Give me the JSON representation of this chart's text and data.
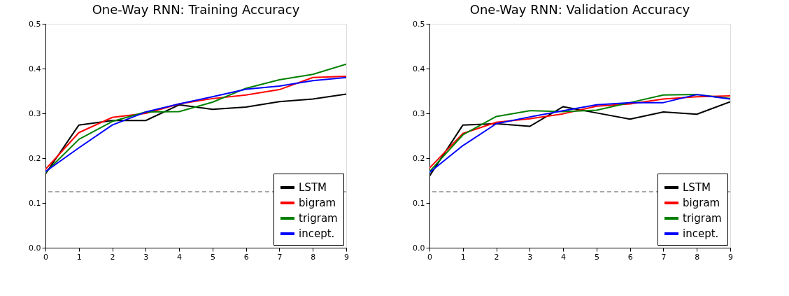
{
  "chart_data": [
    {
      "type": "line",
      "title": "One-Way RNN: Training Accuracy",
      "x": [
        0,
        1,
        2,
        3,
        4,
        5,
        6,
        7,
        8,
        9
      ],
      "xlim": [
        0,
        9
      ],
      "xticks": [
        0,
        1,
        2,
        3,
        4,
        5,
        6,
        7,
        8,
        9
      ],
      "ylim": [
        0,
        0.5
      ],
      "yticks": [
        {
          "value": 0,
          "label": "0.0"
        },
        0.1,
        0.2,
        0.3,
        0.4,
        0.5
      ],
      "grid": false,
      "legend": "bottom right",
      "marker": "none",
      "line_style": "solid",
      "series": [
        {
          "name": "LSTM",
          "color": "#000000",
          "values": [
            0.165,
            0.274,
            0.284,
            0.284,
            0.319,
            0.309,
            0.314,
            0.326,
            0.332,
            0.343
          ]
        },
        {
          "name": "bigram",
          "color": "#ff0000",
          "values": [
            0.175,
            0.257,
            0.291,
            0.3,
            0.321,
            0.333,
            0.341,
            0.353,
            0.38,
            0.383
          ]
        },
        {
          "name": "trigram",
          "color": "#008000",
          "values": [
            0.168,
            0.242,
            0.282,
            0.303,
            0.304,
            0.325,
            0.356,
            0.375,
            0.387,
            0.41
          ]
        },
        {
          "name": "incept.",
          "color": "#0000ff",
          "values": [
            0.17,
            0.223,
            0.274,
            0.303,
            0.321,
            0.337,
            0.354,
            0.361,
            0.373,
            0.38
          ]
        }
      ],
      "ref_lines": [
        {
          "axis": "y",
          "value": 0.125,
          "color": "#555555",
          "line_style": "dashed"
        }
      ]
    },
    {
      "type": "line",
      "title": "One-Way RNN: Validation Accuracy",
      "x": [
        0,
        1,
        2,
        3,
        4,
        5,
        6,
        7,
        8,
        9
      ],
      "xlim": [
        0,
        9
      ],
      "xticks": [
        0,
        1,
        2,
        3,
        4,
        5,
        6,
        7,
        8,
        9
      ],
      "ylim": [
        0,
        0.5
      ],
      "yticks": [
        {
          "value": 0,
          "label": "0.0"
        },
        0.1,
        0.2,
        0.3,
        0.4,
        0.5
      ],
      "grid": false,
      "legend": "bottom right",
      "marker": "none",
      "line_style": "solid",
      "series": [
        {
          "name": "LSTM",
          "color": "#000000",
          "values": [
            0.16,
            0.274,
            0.277,
            0.271,
            0.315,
            0.301,
            0.287,
            0.303,
            0.298,
            0.326
          ]
        },
        {
          "name": "bigram",
          "color": "#ff0000",
          "values": [
            0.178,
            0.255,
            0.28,
            0.288,
            0.299,
            0.316,
            0.321,
            0.332,
            0.337,
            0.339
          ]
        },
        {
          "name": "trigram",
          "color": "#008000",
          "values": [
            0.17,
            0.252,
            0.293,
            0.306,
            0.304,
            0.307,
            0.324,
            0.341,
            0.342,
            0.333
          ]
        },
        {
          "name": "incept.",
          "color": "#0000ff",
          "values": [
            0.168,
            0.228,
            0.277,
            0.292,
            0.306,
            0.319,
            0.324,
            0.324,
            0.342,
            0.332
          ]
        }
      ],
      "ref_lines": [
        {
          "axis": "y",
          "value": 0.125,
          "color": "#555555",
          "line_style": "dashed"
        }
      ]
    }
  ]
}
